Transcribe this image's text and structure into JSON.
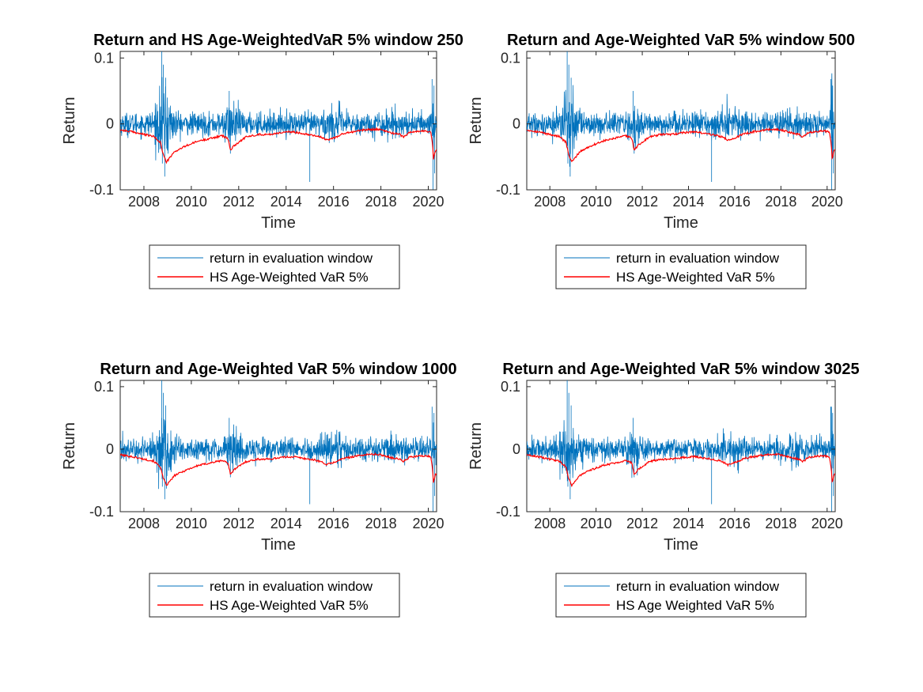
{
  "chart_data": [
    {
      "type": "line",
      "title": "Return and  HS Age-WeightedVaR 5% window 250",
      "xlabel": "Time",
      "ylabel": "Return",
      "x_range": [
        2007.0,
        2020.35
      ],
      "ylim": [
        -0.1,
        0.11
      ],
      "xticks": [
        "2008",
        "2010",
        "2012",
        "2014",
        "2016",
        "2018",
        "2020"
      ],
      "yticks": [
        "-0.1",
        "0",
        "0.1"
      ],
      "legend_position": "below",
      "grid": false,
      "series": [
        {
          "name": "return in evaluation window",
          "color": "#0072BD"
        },
        {
          "name": "HS Age-Weighted VaR 5%",
          "color": "#FF0000"
        }
      ]
    },
    {
      "type": "line",
      "title": "Return and Age-Weighted VaR 5% window 500",
      "xlabel": "Time",
      "ylabel": "Return",
      "x_range": [
        2007.0,
        2020.35
      ],
      "ylim": [
        -0.1,
        0.11
      ],
      "xticks": [
        "2008",
        "2010",
        "2012",
        "2014",
        "2016",
        "2018",
        "2020"
      ],
      "yticks": [
        "-0.1",
        "0",
        "0.1"
      ],
      "legend_position": "below",
      "grid": false,
      "series": [
        {
          "name": "return in evaluation window",
          "color": "#0072BD"
        },
        {
          "name": "HS Age-Weighted VaR 5%",
          "color": "#FF0000"
        }
      ]
    },
    {
      "type": "line",
      "title": "Return and Age-Weighted VaR 5% window 1000",
      "xlabel": "Time",
      "ylabel": "Return",
      "x_range": [
        2007.0,
        2020.35
      ],
      "ylim": [
        -0.1,
        0.11
      ],
      "xticks": [
        "2008",
        "2010",
        "2012",
        "2014",
        "2016",
        "2018",
        "2020"
      ],
      "yticks": [
        "-0.1",
        "0",
        "0.1"
      ],
      "legend_position": "below",
      "grid": false,
      "series": [
        {
          "name": "return in evaluation window",
          "color": "#0072BD"
        },
        {
          "name": "HS Age-Weighted VaR 5%",
          "color": "#FF0000"
        }
      ]
    },
    {
      "type": "line",
      "title": "Return and Age-Weighted VaR 5% window 3025",
      "xlabel": "Time",
      "ylabel": "Return",
      "x_range": [
        2007.0,
        2020.35
      ],
      "ylim": [
        -0.1,
        0.11
      ],
      "xticks": [
        "2008",
        "2010",
        "2012",
        "2014",
        "2016",
        "2018",
        "2020"
      ],
      "yticks": [
        "-0.1",
        "0",
        "0.1"
      ],
      "legend_position": "below",
      "grid": false,
      "series": [
        {
          "name": "return in evaluation window",
          "color": "#0072BD"
        },
        {
          "name": "HS Age Weighted VaR 5%",
          "color": "#FF0000"
        }
      ]
    }
  ],
  "var_anchor_points": {
    "x": [
      2007.0,
      2007.5,
      2008.0,
      2008.4,
      2008.7,
      2008.8,
      2008.95,
      2009.3,
      2009.8,
      2010.3,
      2010.8,
      2011.3,
      2011.55,
      2011.65,
      2011.8,
      2012.3,
      2012.8,
      2013.3,
      2013.8,
      2014.3,
      2014.8,
      2015.3,
      2015.6,
      2015.7,
      2016.1,
      2016.4,
      2016.8,
      2017.3,
      2017.8,
      2018.1,
      2018.5,
      2018.8,
      2018.95,
      2019.2,
      2019.6,
      2019.9,
      2020.1,
      2020.18,
      2020.22,
      2020.28,
      2020.35
    ],
    "y": [
      -0.009,
      -0.012,
      -0.016,
      -0.019,
      -0.028,
      -0.045,
      -0.058,
      -0.042,
      -0.033,
      -0.026,
      -0.022,
      -0.018,
      -0.022,
      -0.04,
      -0.033,
      -0.02,
      -0.016,
      -0.016,
      -0.013,
      -0.012,
      -0.015,
      -0.018,
      -0.022,
      -0.025,
      -0.02,
      -0.015,
      -0.012,
      -0.009,
      -0.008,
      -0.01,
      -0.014,
      -0.016,
      -0.02,
      -0.013,
      -0.011,
      -0.011,
      -0.012,
      -0.03,
      -0.055,
      -0.042,
      -0.038
    ]
  },
  "return_shock_points": {
    "x": [
      2008.75,
      2008.78,
      2008.82,
      2008.88,
      2008.92,
      2011.6,
      2011.65,
      2015.0,
      2020.16,
      2020.2,
      2020.24,
      2020.27
    ],
    "y": [
      0.11,
      -0.06,
      0.09,
      -0.08,
      0.07,
      0.05,
      -0.045,
      -0.088,
      0.068,
      -0.1,
      0.058,
      -0.075
    ]
  }
}
